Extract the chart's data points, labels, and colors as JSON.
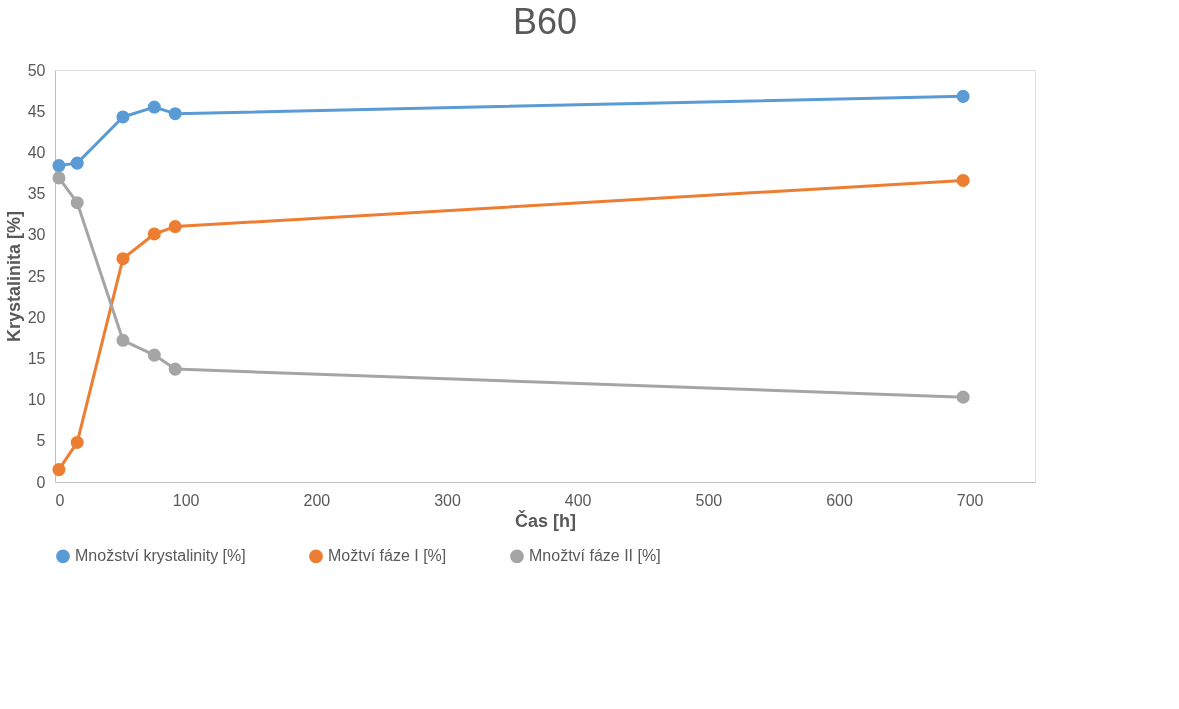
{
  "chart_data": {
    "type": "line",
    "title": "B60",
    "xlabel": "Čas [h]",
    "ylabel": "Krystalinita [%]",
    "x": [
      3,
      17,
      52,
      76,
      92,
      695
    ],
    "series": [
      {
        "name": "Množství krystalinity [%]",
        "color": "#5b9bd5",
        "values": [
          38.4,
          38.7,
          44.3,
          45.5,
          44.7,
          46.8
        ]
      },
      {
        "name": "Možtví fáze I [%]",
        "color": "#ed7d31",
        "values": [
          1.5,
          4.8,
          27.1,
          30.1,
          31.0,
          36.6
        ]
      },
      {
        "name": "Množtví fáze II [%]",
        "color": "#a5a5a5",
        "values": [
          36.9,
          33.9,
          17.2,
          15.4,
          13.7,
          10.3
        ]
      }
    ],
    "xlim": [
      0,
      750
    ],
    "xticks": [
      0,
      100,
      200,
      300,
      400,
      500,
      600,
      700
    ],
    "ylim": [
      0,
      50
    ],
    "yticks": [
      0,
      5,
      10,
      15,
      20,
      25,
      30,
      35,
      40,
      45,
      50
    ],
    "grid": false,
    "legend": "bottom",
    "marker": "circle",
    "line_style": "solid"
  }
}
